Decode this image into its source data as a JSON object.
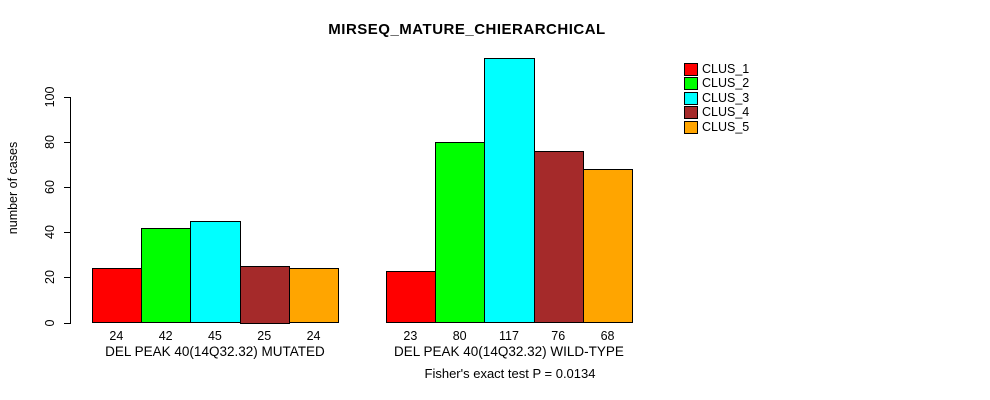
{
  "chart_data": {
    "type": "bar",
    "title": "MIRSEQ_MATURE_CHIERARCHICAL",
    "ylabel": "number of cases",
    "xlabel": "",
    "footnote": "Fisher's exact test P = 0.0134",
    "yticks": [
      0,
      20,
      40,
      60,
      80,
      100
    ],
    "ylim": [
      0,
      100
    ],
    "grid": false,
    "bar_borders_color": "#000000",
    "categories": [
      "DEL PEAK 40(14Q32.32) MUTATED",
      "DEL PEAK 40(14Q32.32) WILD-TYPE"
    ],
    "series": [
      {
        "name": "CLUS_1",
        "color": "#FF0000",
        "values": [
          24,
          23
        ]
      },
      {
        "name": "CLUS_2",
        "color": "#00FF00",
        "values": [
          42,
          80
        ]
      },
      {
        "name": "CLUS_3",
        "color": "#00FFFF",
        "values": [
          45,
          117
        ]
      },
      {
        "name": "CLUS_4",
        "color": "#A52A2A",
        "values": [
          25,
          76
        ]
      },
      {
        "name": "CLUS_5",
        "color": "#FFA500",
        "values": [
          24,
          68
        ]
      }
    ],
    "legend": {
      "position": "right",
      "entries": [
        "CLUS_1",
        "CLUS_2",
        "CLUS_3",
        "CLUS_4",
        "CLUS_5"
      ]
    }
  }
}
